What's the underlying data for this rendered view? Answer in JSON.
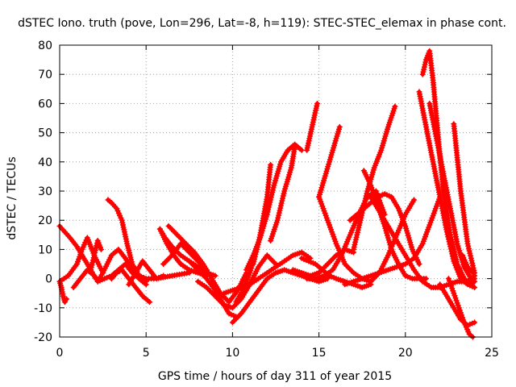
{
  "chart_data": {
    "type": "scatter",
    "title": "dSTEC Iono. truth (pove, Lon=296, Lat=-8, h=119): STEC-STEC_elemax in phase cont.",
    "xlabel": "GPS time / hours of day 311 of year 2015",
    "ylabel": "dSTEC  / TECUs",
    "xlim": [
      0,
      25
    ],
    "ylim": [
      -20,
      80
    ],
    "x_ticks": [
      "0",
      "5",
      "10",
      "15",
      "20",
      "25"
    ],
    "y_ticks": [
      "-20",
      "-10",
      "0",
      "10",
      "20",
      "30",
      "40",
      "50",
      "60",
      "70",
      "80"
    ],
    "x_tick_values": [
      0,
      5,
      10,
      15,
      20,
      25
    ],
    "y_tick_values": [
      -20,
      -10,
      0,
      10,
      20,
      30,
      40,
      50,
      60,
      70,
      80
    ],
    "grid": true,
    "marker": "plus",
    "color": "#ff0000",
    "series": [
      {
        "x": [
          0.0,
          0.3,
          0.6,
          1.0,
          1.4,
          1.8,
          2.1
        ],
        "y": [
          18,
          16,
          14,
          11,
          7,
          3,
          0
        ]
      },
      {
        "x": [
          0.0,
          0.1,
          0.2,
          0.3,
          0.4
        ],
        "y": [
          -1,
          -3,
          -6,
          -8,
          -7
        ]
      },
      {
        "x": [
          0.0,
          0.5,
          1.0,
          1.3,
          1.6,
          2.0,
          2.5
        ],
        "y": [
          -1,
          1,
          5,
          10,
          14,
          8,
          2
        ]
      },
      {
        "x": [
          0.8,
          1.2,
          1.6,
          2.0,
          2.2,
          2.5,
          3.0,
          3.4,
          3.8,
          4.2,
          4.6,
          5.0
        ],
        "y": [
          -3,
          0,
          3,
          1,
          -1,
          2,
          8,
          10,
          7,
          3,
          0,
          -1
        ]
      },
      {
        "x": [
          1.8,
          2.0,
          2.2,
          2.4
        ],
        "y": [
          3,
          8,
          13,
          10
        ]
      },
      {
        "x": [
          2.2,
          2.6,
          3.0,
          3.4,
          3.8,
          4.2,
          4.6,
          5.0
        ],
        "y": [
          -1,
          0,
          1,
          3,
          5,
          2,
          0,
          -2
        ]
      },
      {
        "x": [
          2.8,
          3.0,
          3.3,
          3.6,
          3.9,
          4.2,
          4.6,
          5.0,
          5.6,
          6.5,
          7.5
        ],
        "y": [
          27,
          26,
          24,
          20,
          12,
          5,
          1,
          0,
          0,
          1,
          2
        ]
      },
      {
        "x": [
          3.0,
          3.3,
          3.6,
          4.0,
          4.4,
          4.8,
          5.2
        ],
        "y": [
          0,
          2,
          3,
          0,
          -3,
          -6,
          -8
        ]
      },
      {
        "x": [
          4.0,
          4.4,
          4.8,
          5.2,
          5.6,
          6.0
        ],
        "y": [
          -2,
          2,
          6,
          3,
          0,
          1
        ]
      },
      {
        "x": [
          5.8,
          6.2,
          6.6,
          7.0,
          7.5,
          8.0,
          8.5
        ],
        "y": [
          17,
          12,
          8,
          5,
          3,
          2,
          1
        ]
      },
      {
        "x": [
          5.8,
          6.1,
          6.5,
          7.0,
          7.5,
          8.0,
          8.5,
          9.0
        ],
        "y": [
          17,
          14,
          11,
          8,
          6,
          4,
          2,
          1
        ]
      },
      {
        "x": [
          6.0,
          6.5,
          7.0,
          7.5,
          8.0,
          8.5
        ],
        "y": [
          5,
          8,
          12,
          9,
          6,
          3
        ]
      },
      {
        "x": [
          6.3,
          6.8,
          7.3,
          7.8,
          8.3,
          8.8,
          9.3,
          9.8,
          10.3,
          10.8
        ],
        "y": [
          18,
          15,
          12,
          9,
          5,
          0,
          -5,
          -8,
          -4,
          2
        ]
      },
      {
        "x": [
          7.5,
          8.0,
          8.5,
          9.0,
          9.4,
          9.8,
          10.2
        ],
        "y": [
          6,
          3,
          0,
          -4,
          -8,
          -12,
          -13
        ]
      },
      {
        "x": [
          8.0,
          8.5,
          9.0,
          9.5,
          10.0,
          10.5,
          11.0,
          11.5,
          12.0,
          12.5
        ],
        "y": [
          -1,
          -3,
          -6,
          -9,
          -10,
          -7,
          -2,
          4,
          8,
          5
        ]
      },
      {
        "x": [
          9.5,
          10.0,
          10.5,
          11.0,
          11.5,
          12.0,
          12.5,
          13.0,
          13.5,
          14.0,
          14.5
        ],
        "y": [
          -5,
          -4,
          -3,
          -2,
          0,
          2,
          4,
          6,
          8,
          9,
          7
        ]
      },
      {
        "x": [
          10.0,
          10.5,
          11.0,
          11.5,
          12.0,
          12.5,
          13.0,
          13.5,
          14.0,
          14.5,
          15.0,
          15.5
        ],
        "y": [
          -15,
          -12,
          -8,
          -4,
          0,
          2,
          3,
          2,
          1,
          0,
          -1,
          0
        ]
      },
      {
        "x": [
          10.2,
          10.6,
          11.0,
          11.4,
          11.8
        ],
        "y": [
          -8,
          -4,
          2,
          10,
          19
        ]
      },
      {
        "x": [
          10.8,
          11.2,
          11.6,
          12.0,
          12.4,
          12.8,
          13.2,
          13.6,
          14.0
        ],
        "y": [
          3,
          8,
          14,
          22,
          32,
          40,
          44,
          46,
          44
        ]
      },
      {
        "x": [
          11.2,
          11.6,
          12.0,
          12.2
        ],
        "y": [
          5,
          15,
          28,
          39
        ]
      },
      {
        "x": [
          12.2,
          12.6,
          13.0,
          13.4,
          13.6
        ],
        "y": [
          13,
          20,
          30,
          38,
          45
        ]
      },
      {
        "x": [
          13.5,
          14.0,
          14.5,
          15.0,
          15.5,
          16.0,
          16.5,
          17.0
        ],
        "y": [
          3,
          2,
          1,
          2,
          5,
          8,
          10,
          9
        ]
      },
      {
        "x": [
          14.0,
          14.4,
          14.8,
          15.2,
          15.6,
          16.0,
          16.5,
          17.0,
          17.5,
          18.0
        ],
        "y": [
          7,
          6,
          5,
          3,
          1,
          0,
          -1,
          -2,
          -3,
          -2
        ]
      },
      {
        "x": [
          14.3,
          14.6,
          14.9
        ],
        "y": [
          44,
          52,
          60
        ]
      },
      {
        "x": [
          15.0,
          15.4,
          15.8,
          16.2
        ],
        "y": [
          28,
          36,
          44,
          52
        ]
      },
      {
        "x": [
          14.3,
          14.8,
          15.3,
          15.8,
          16.3,
          16.8,
          17.3,
          17.8,
          18.3,
          18.8
        ],
        "y": [
          0,
          0,
          1,
          3,
          8,
          15,
          22,
          28,
          30,
          22
        ]
      },
      {
        "x": [
          15.0,
          15.5,
          16.0,
          16.5,
          17.0,
          17.5,
          18.0,
          18.5,
          19.0,
          19.5,
          20.0,
          20.5
        ],
        "y": [
          28,
          20,
          12,
          5,
          2,
          0,
          -1,
          2,
          8,
          15,
          22,
          27
        ]
      },
      {
        "x": [
          16.8,
          17.2,
          17.6,
          18.0,
          18.4,
          18.8,
          19.2,
          19.6,
          20.0,
          20.4,
          20.8
        ],
        "y": [
          20,
          22,
          24,
          26,
          28,
          29,
          28,
          24,
          18,
          10,
          5
        ]
      },
      {
        "x": [
          16.5,
          17.0,
          17.5,
          18.0,
          18.5,
          19.0,
          19.5,
          20.0,
          20.5,
          21.0,
          21.5,
          22.0
        ],
        "y": [
          -2,
          -1,
          0,
          1,
          2,
          3,
          4,
          5,
          7,
          12,
          20,
          28
        ]
      },
      {
        "x": [
          17.0,
          17.4,
          17.8,
          18.2,
          18.6,
          19.0,
          19.4
        ],
        "y": [
          10,
          20,
          30,
          38,
          44,
          52,
          59
        ]
      },
      {
        "x": [
          17.6,
          18.0,
          18.4,
          18.8,
          19.2,
          19.6,
          20.0,
          20.4,
          20.8,
          21.2
        ],
        "y": [
          37,
          32,
          25,
          18,
          10,
          5,
          1,
          0,
          0,
          0
        ]
      },
      {
        "x": [
          18.0,
          18.4,
          18.8,
          19.2,
          19.6,
          20.0,
          20.5,
          21.0,
          21.5,
          22.0,
          22.5,
          23.0,
          23.5,
          24.0
        ],
        "y": [
          28,
          24,
          20,
          16,
          12,
          8,
          3,
          -1,
          -3,
          -3,
          -2,
          -1,
          -1,
          0
        ]
      },
      {
        "x": [
          20.8,
          21.2,
          21.6,
          22.0,
          22.4,
          22.8,
          23.2,
          23.6,
          24.0
        ],
        "y": [
          64,
          52,
          40,
          28,
          16,
          6,
          0,
          -2,
          -3
        ]
      },
      {
        "x": [
          21.0,
          21.2,
          21.4,
          21.6,
          21.8,
          22.0,
          22.2,
          22.6,
          23.0,
          23.4,
          23.8,
          24.0
        ],
        "y": [
          70,
          75,
          78,
          68,
          55,
          42,
          30,
          15,
          5,
          0,
          -2,
          -1
        ]
      },
      {
        "x": [
          21.4,
          21.8,
          22.2,
          22.6,
          23.0,
          23.4,
          23.8,
          24.0
        ],
        "y": [
          60,
          48,
          36,
          24,
          12,
          4,
          0,
          1
        ]
      },
      {
        "x": [
          22.0,
          22.4,
          22.8,
          23.2,
          23.6,
          24.0
        ],
        "y": [
          -2,
          -6,
          -10,
          -14,
          -16,
          -15
        ]
      },
      {
        "x": [
          22.8,
          23.2,
          23.6,
          24.0
        ],
        "y": [
          53,
          30,
          12,
          2
        ]
      },
      {
        "x": [
          22.5,
          22.8,
          23.1,
          23.4,
          23.7,
          23.9
        ],
        "y": [
          0,
          -5,
          -10,
          -15,
          -19,
          -20
        ]
      },
      {
        "x": [
          23.3,
          23.6,
          23.9
        ],
        "y": [
          8,
          4,
          2
        ]
      }
    ]
  }
}
